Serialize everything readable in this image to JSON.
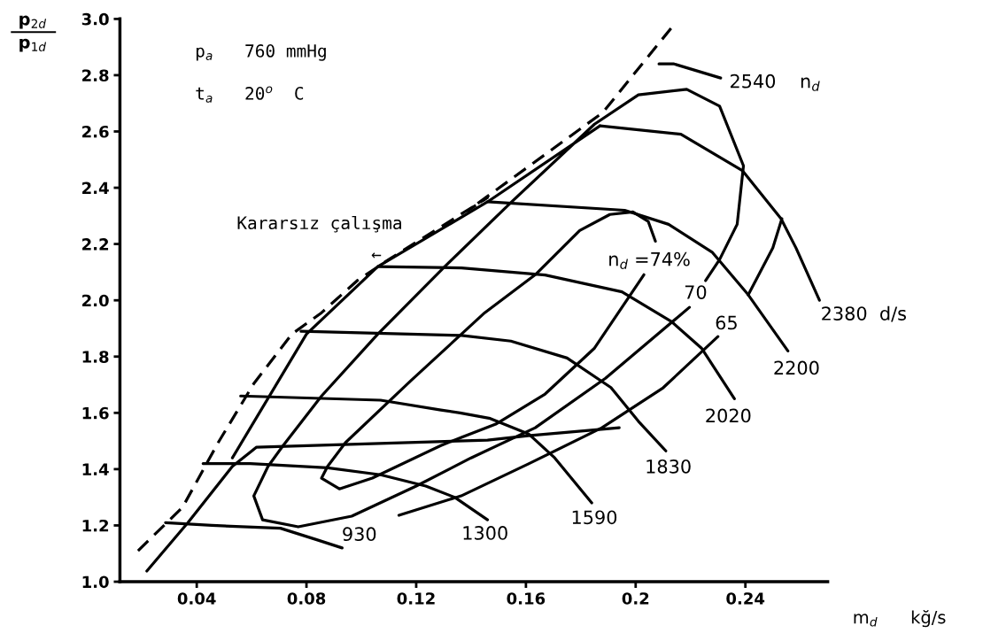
{
  "chart_data": {
    "type": "line",
    "xlabel": "m$_{d}$      kğ/s",
    "ylabel": "p$_{2d}$\np$_{1d}$",
    "xlim": [
      0.012,
      0.27
    ],
    "xticks": [
      0.04,
      0.08,
      0.12,
      0.16,
      0.2,
      0.24
    ],
    "ylim": [
      1.0,
      3.0
    ],
    "yticks": [
      {
        "value": 1.0,
        "label": "1.0"
      },
      {
        "value": 1.2,
        "label": "1.2"
      },
      {
        "value": 1.4,
        "label": "1.4"
      },
      {
        "value": 1.6,
        "label": "1.6"
      },
      {
        "value": 1.8,
        "label": "1.8"
      },
      {
        "value": 2.0,
        "label": "2.0"
      },
      {
        "value": 2.2,
        "label": "2.2"
      },
      {
        "value": 2.4,
        "label": "2.4"
      },
      {
        "value": 2.6,
        "label": "2.6"
      },
      {
        "value": 2.8,
        "label": "2.8"
      },
      {
        "value": 3.0,
        "label": "3.0"
      }
    ],
    "grid": false,
    "legend": false,
    "marker": "none",
    "series": [
      {
        "color": "#000000",
        "line_style": "dashed",
        "x": [
          0.0186,
          0.0348,
          0.0478,
          0.0608,
          0.0747,
          0.0855,
          0.0985,
          0.11,
          0.146,
          0.1387,
          0.188,
          0.214
        ],
        "values": [
          1.11,
          1.264,
          1.494,
          1.704,
          1.88,
          1.956,
          2.07,
          2.145,
          2.365,
          2.318,
          2.667,
          2.98
        ]
      },
      {
        "color": "#000000",
        "line_style": "solid",
        "x": [
          0.0218,
          0.0368,
          0.053,
          0.0618,
          0.146,
          0.1608,
          0.194
        ],
        "values": [
          1.038,
          1.21,
          1.41,
          1.478,
          1.503,
          1.519,
          1.547
        ]
      },
      {
        "name": "930",
        "color": "#000000",
        "line_style": "solid",
        "x": [
          0.0286,
          0.0455,
          0.0705,
          0.0835,
          0.093
        ],
        "values": [
          1.21,
          1.2,
          1.19,
          1.15,
          1.12
        ]
      },
      {
        "name": "1300",
        "color": "#000000",
        "line_style": "solid",
        "x": [
          0.0423,
          0.0595,
          0.0877,
          0.107,
          0.1235,
          0.134,
          0.146
        ],
        "values": [
          1.42,
          1.42,
          1.405,
          1.38,
          1.34,
          1.3,
          1.22
        ]
      },
      {
        "name": "1590",
        "color": "#000000",
        "line_style": "solid",
        "x": [
          0.056,
          0.107,
          0.129,
          0.136,
          0.147,
          0.161,
          0.1705,
          0.184
        ],
        "values": [
          1.66,
          1.645,
          1.61,
          1.6,
          1.58,
          1.525,
          1.44,
          1.28
        ]
      },
      {
        "name": "1830",
        "color": "#000000",
        "line_style": "solid",
        "x": [
          0.078,
          0.1365,
          0.1545,
          0.175,
          0.191,
          0.201,
          0.211
        ],
        "values": [
          1.89,
          1.875,
          1.855,
          1.795,
          1.69,
          1.57,
          1.465
        ]
      },
      {
        "name": "2020",
        "color": "#000000",
        "line_style": "solid",
        "x": [
          0.106,
          0.1365,
          0.167,
          0.195,
          0.213,
          0.224,
          0.236
        ],
        "values": [
          2.12,
          2.115,
          2.09,
          2.03,
          1.925,
          1.83,
          1.65
        ]
      },
      {
        "name": "2200",
        "color": "#000000",
        "line_style": "solid",
        "x": [
          0.146,
          0.196,
          0.212,
          0.228,
          0.241,
          0.2555
        ],
        "values": [
          2.35,
          2.32,
          2.27,
          2.17,
          2.02,
          1.82
        ]
      },
      {
        "name": "2380  d/s",
        "color": "#000000",
        "line_style": "solid",
        "x": [
          0.187,
          0.2165,
          0.239,
          0.253,
          0.2585,
          0.267
        ],
        "values": [
          2.62,
          2.59,
          2.46,
          2.29,
          2.185,
          2.0
        ]
      },
      {
        "name": "2540    n$_{d}$",
        "color": "#000000",
        "line_style": "solid",
        "x": [
          0.2085,
          0.214,
          0.231
        ],
        "values": [
          2.84,
          2.84,
          2.79
        ]
      },
      {
        "name": "n$_{d}$ =74%",
        "color": "#000000",
        "line_style": "solid",
        "x": [
          0.2072,
          0.2046,
          0.199,
          0.1906,
          0.1796,
          0.1634,
          0.145,
          0.118,
          0.0942,
          0.0877,
          0.0855,
          0.092,
          0.104,
          0.129,
          0.1365,
          0.149,
          0.167,
          0.185,
          0.203
        ],
        "values": [
          2.21,
          2.28,
          2.314,
          2.305,
          2.248,
          2.091,
          1.956,
          1.714,
          1.494,
          1.41,
          1.368,
          1.33,
          1.368,
          1.484,
          1.513,
          1.56,
          1.667,
          1.83,
          2.091
        ]
      },
      {
        "name": "70",
        "color": "#000000",
        "line_style": "solid",
        "x": [
          0.2196,
          0.189,
          0.1634,
          0.14,
          0.12,
          0.0965,
          0.077,
          0.064,
          0.0608,
          0.066,
          0.0715,
          0.0855,
          0.106,
          0.13,
          0.155,
          0.185,
          0.201,
          0.2186,
          0.2306,
          0.2393,
          0.237,
          0.2306,
          0.2255,
          null,
          0.053,
          0.08,
          0.106,
          0.146,
          0.187
        ],
        "values": [
          1.975,
          1.723,
          1.547,
          1.44,
          1.34,
          1.233,
          1.195,
          1.22,
          1.305,
          1.41,
          1.484,
          1.66,
          1.88,
          2.116,
          2.352,
          2.626,
          2.73,
          2.75,
          2.69,
          2.478,
          2.27,
          2.145,
          2.07,
          null,
          1.44,
          1.88,
          2.12,
          2.35,
          2.62
        ]
      },
      {
        "name": "65",
        "color": "#000000",
        "line_style": "solid",
        "x": [
          0.1137,
          0.1364,
          0.1608,
          0.1877,
          0.21,
          0.23,
          null,
          0.241,
          0.25,
          0.2533
        ],
        "values": [
          1.236,
          1.305,
          1.418,
          1.547,
          1.689,
          1.871,
          null,
          2.019,
          2.186,
          2.29
        ]
      }
    ],
    "annotations": [
      "p$_{a}$   760 mmHg",
      "t$_{a}$   20$^{o}$  C",
      "Kararsız çalışma",
      "←"
    ]
  }
}
